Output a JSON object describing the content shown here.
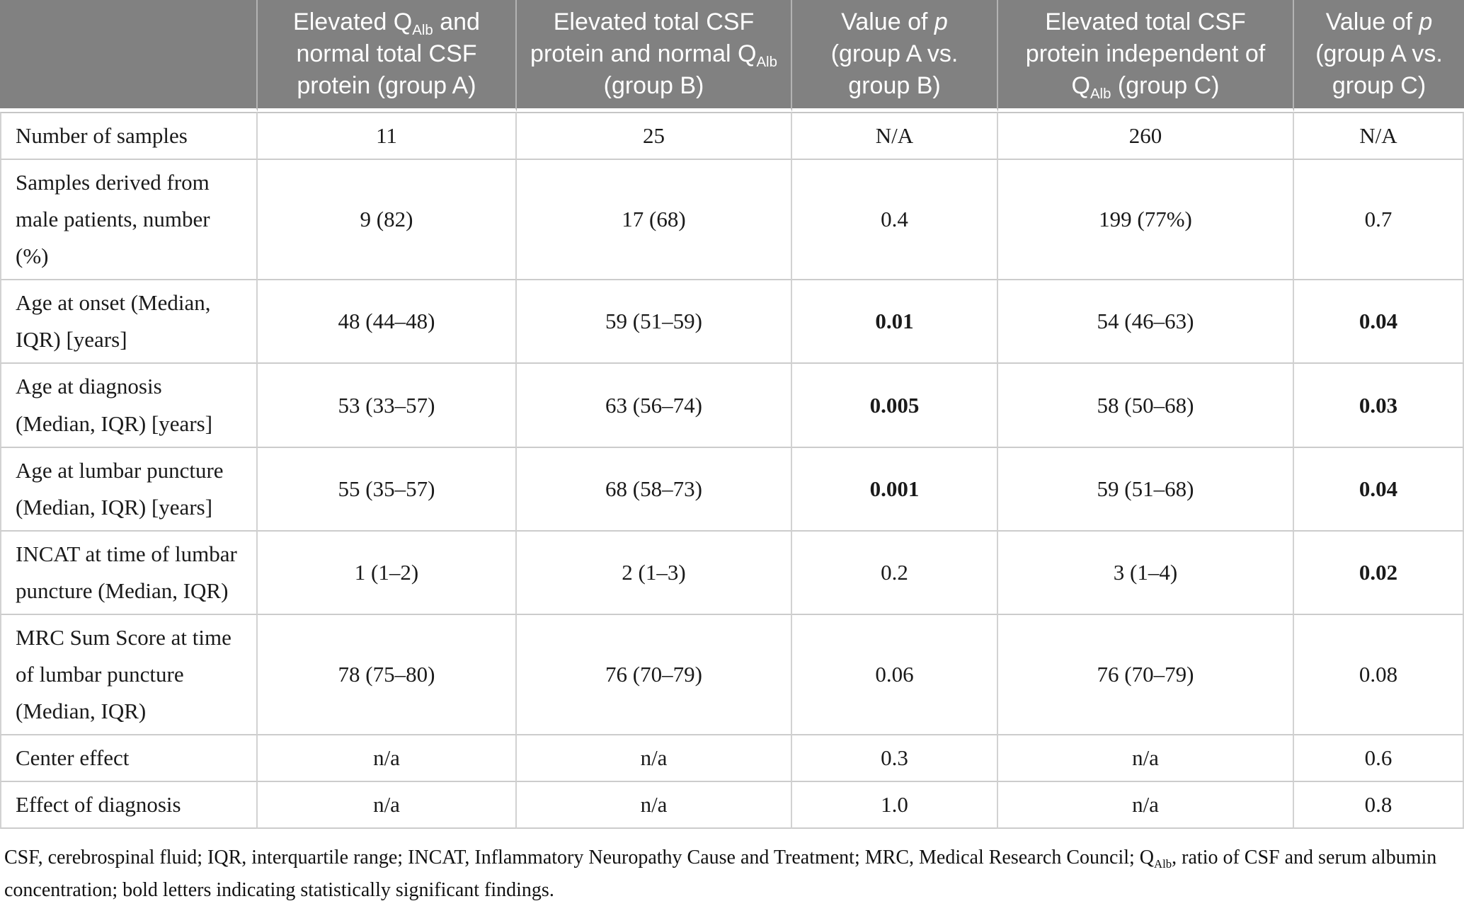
{
  "colors": {
    "header_background": "#818181",
    "header_text": "#ffffff",
    "body_text": "#1a1a1a",
    "grid_border": "#cccccc"
  },
  "table": {
    "header": [
      {
        "name": "row-label-column",
        "segments": [
          {
            "text": ""
          }
        ]
      },
      {
        "name": "group-a",
        "segments": [
          {
            "text": "Elevated Q"
          },
          {
            "text": "Alb",
            "style": "sub"
          },
          {
            "text": " and normal total CSF protein (group A)"
          }
        ]
      },
      {
        "name": "group-b",
        "segments": [
          {
            "text": "Elevated total CSF protein and normal Q"
          },
          {
            "text": "Alb",
            "style": "sub"
          },
          {
            "text": " (group B)"
          }
        ]
      },
      {
        "name": "p-a-vs-b",
        "segments": [
          {
            "text": "Value of "
          },
          {
            "text": "p",
            "style": "italic"
          },
          {
            "text": " (group A vs. group B)"
          }
        ]
      },
      {
        "name": "group-c",
        "segments": [
          {
            "text": "Elevated total CSF protein independent of Q"
          },
          {
            "text": "Alb",
            "style": "sub"
          },
          {
            "text": " (group C)"
          }
        ]
      },
      {
        "name": "p-a-vs-c",
        "segments": [
          {
            "text": "Value of "
          },
          {
            "text": "p",
            "style": "italic"
          },
          {
            "text": " (group A vs. group C)"
          }
        ]
      }
    ],
    "rows": [
      {
        "label": "Number of samples",
        "cells": [
          {
            "text": "11"
          },
          {
            "text": "25"
          },
          {
            "text": "N/A"
          },
          {
            "text": "260"
          },
          {
            "text": "N/A"
          }
        ]
      },
      {
        "label": "Samples derived from male patients, number (%)",
        "cells": [
          {
            "text": "9 (82)"
          },
          {
            "text": "17 (68)"
          },
          {
            "text": "0.4"
          },
          {
            "text": "199 (77%)"
          },
          {
            "text": "0.7"
          }
        ]
      },
      {
        "label": "Age at onset (Median, IQR) [years]",
        "cells": [
          {
            "text": "48 (44–48)"
          },
          {
            "text": "59 (51–59)"
          },
          {
            "text": "0.01",
            "bold": true
          },
          {
            "text": "54 (46–63)"
          },
          {
            "text": "0.04",
            "bold": true
          }
        ]
      },
      {
        "label": "Age at diagnosis (Median, IQR) [years]",
        "cells": [
          {
            "text": "53 (33–57)"
          },
          {
            "text": "63 (56–74)"
          },
          {
            "text": "0.005",
            "bold": true
          },
          {
            "text": "58 (50–68)"
          },
          {
            "text": "0.03",
            "bold": true
          }
        ]
      },
      {
        "label": "Age at lumbar puncture (Median, IQR) [years]",
        "cells": [
          {
            "text": "55 (35–57)"
          },
          {
            "text": "68 (58–73)"
          },
          {
            "text": "0.001",
            "bold": true
          },
          {
            "text": "59 (51–68)"
          },
          {
            "text": "0.04",
            "bold": true
          }
        ]
      },
      {
        "label": "INCAT at time of lumbar puncture (Median, IQR)",
        "cells": [
          {
            "text": "1 (1–2)"
          },
          {
            "text": "2 (1–3)"
          },
          {
            "text": "0.2"
          },
          {
            "text": "3 (1–4)"
          },
          {
            "text": "0.02",
            "bold": true
          }
        ]
      },
      {
        "label": "MRC Sum Score at time of lumbar puncture (Median, IQR)",
        "cells": [
          {
            "text": "78 (75–80)"
          },
          {
            "text": "76 (70–79)"
          },
          {
            "text": "0.06"
          },
          {
            "text": "76 (70–79)"
          },
          {
            "text": "0.08"
          }
        ]
      },
      {
        "label": "Center effect",
        "cells": [
          {
            "text": "n/a"
          },
          {
            "text": "n/a"
          },
          {
            "text": "0.3"
          },
          {
            "text": "n/a"
          },
          {
            "text": "0.6"
          }
        ]
      },
      {
        "label": "Effect of diagnosis",
        "cells": [
          {
            "text": "n/a"
          },
          {
            "text": "n/a"
          },
          {
            "text": "1.0"
          },
          {
            "text": "n/a"
          },
          {
            "text": "0.8"
          }
        ]
      }
    ]
  },
  "footnote": {
    "segments": [
      {
        "text": "CSF, cerebrospinal fluid; IQR, interquartile range; INCAT, Inflammatory Neuropathy Cause and Treatment; MRC, Medical Research Council; Q"
      },
      {
        "text": "Alb",
        "style": "sub"
      },
      {
        "text": ", ratio of CSF and serum albumin concentration; bold letters indicating statistically significant findings."
      }
    ]
  }
}
